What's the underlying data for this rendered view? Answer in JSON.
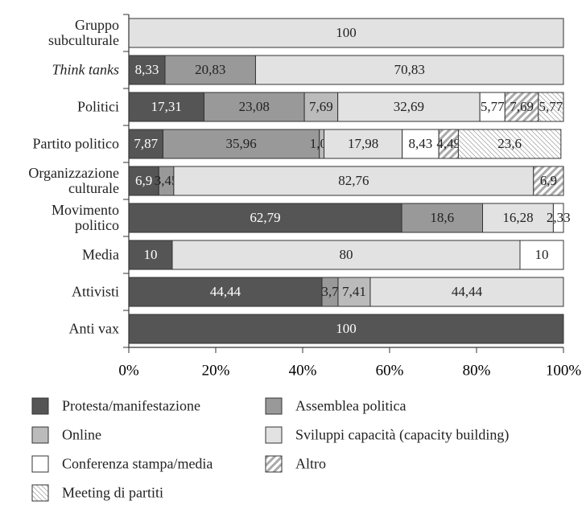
{
  "chart_data": {
    "type": "stacked_barh",
    "categories": [
      "Gruppo\nsubculturale",
      "Think tanks",
      "Politici",
      "Partito politico",
      "Organizzazione\nculturale",
      "Movimento\npolitico",
      "Media",
      "Attivisti",
      "Anti vax"
    ],
    "series": [
      {
        "name": "Protesta/manifestazione",
        "color": "#555555",
        "label_color": "#ffffff",
        "values": [
          null,
          8.33,
          17.31,
          7.87,
          6.9,
          62.79,
          10,
          44.44,
          100
        ],
        "value_labels": [
          null,
          "8,33",
          "17,31",
          "7,87",
          "6,9",
          "62,79",
          "10",
          "44,44",
          "100"
        ]
      },
      {
        "name": "Assemblea politica",
        "color": "#999999",
        "label_color": "#222222",
        "values": [
          null,
          20.83,
          23.08,
          35.96,
          3.45,
          18.6,
          null,
          3.7,
          null
        ],
        "value_labels": [
          null,
          "20,83",
          "23,08",
          "35,96",
          "3,45",
          "18,6",
          null,
          "3,7",
          null
        ]
      },
      {
        "name": "Online",
        "color": "#bbbbbb",
        "label_color": "#222222",
        "values": [
          null,
          null,
          7.69,
          1.09,
          null,
          null,
          null,
          7.41,
          null
        ],
        "value_labels": [
          null,
          null,
          "7,69",
          "1,09",
          null,
          null,
          null,
          "7,41",
          null
        ]
      },
      {
        "name": "Sviluppi capacità (capacity building)",
        "color": "#e2e2e2",
        "label_color": "#222222",
        "values": [
          100,
          70.83,
          32.69,
          17.98,
          82.76,
          16.28,
          80,
          44.44,
          null
        ],
        "value_labels": [
          "100",
          "70,83",
          "32,69",
          "17,98",
          "82,76",
          "16,28",
          "80",
          "44,44",
          null
        ]
      },
      {
        "name": "Conferenza stampa/media",
        "color": "#ffffff",
        "label_color": "#222222",
        "values": [
          null,
          null,
          5.77,
          8.43,
          null,
          2.33,
          10,
          null,
          null
        ],
        "value_labels": [
          null,
          null,
          "5,77",
          "8,43",
          null,
          "2,33",
          "10",
          null,
          null
        ]
      },
      {
        "name": "Altro",
        "color": "#aaaaaa",
        "pattern": "forward",
        "label_color": "#222222",
        "values": [
          null,
          null,
          7.69,
          4.49,
          6.9,
          null,
          null,
          null,
          null
        ],
        "value_labels": [
          null,
          null,
          "7,69",
          "4,49",
          "6,9",
          null,
          null,
          null,
          null
        ]
      },
      {
        "name": "Meeting di partiti",
        "color": "#aaaaaa",
        "pattern": "backward",
        "label_color": "#222222",
        "values": [
          null,
          null,
          5.77,
          23.6,
          null,
          null,
          null,
          null,
          null
        ],
        "value_labels": [
          null,
          null,
          "5,77",
          "23,6",
          null,
          null,
          null,
          null,
          null
        ]
      }
    ],
    "xlim": [
      0,
      100
    ],
    "xticks": [
      {
        "value": 0,
        "label": "0%"
      },
      {
        "value": 20,
        "label": "20%"
      },
      {
        "value": 40,
        "label": "40%"
      },
      {
        "value": 60,
        "label": "60%"
      },
      {
        "value": 80,
        "label": "80%"
      },
      {
        "value": 100,
        "label": "100%"
      }
    ]
  }
}
